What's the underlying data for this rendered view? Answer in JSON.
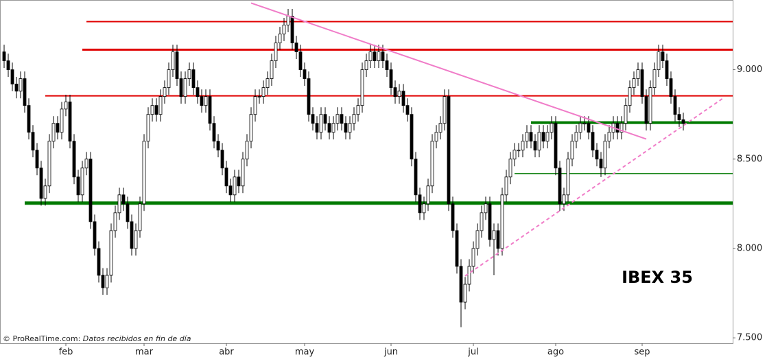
{
  "chart_data": {
    "type": "candlestick",
    "title": "IBEX 35",
    "source": {
      "site": "© ProRealTime.com:",
      "note": "Datos recibidos en fin de día"
    },
    "categories": [
      null,
      null,
      null,
      null,
      null,
      null,
      null,
      null,
      null,
      null,
      null,
      null,
      null,
      null,
      null,
      "feb",
      null,
      null,
      null,
      null,
      null,
      null,
      null,
      null,
      null,
      null,
      null,
      null,
      null,
      null,
      null,
      null,
      null,
      null,
      "mar",
      null,
      null,
      null,
      null,
      null,
      null,
      null,
      null,
      null,
      null,
      null,
      null,
      null,
      null,
      null,
      null,
      null,
      null,
      null,
      "abr",
      null,
      null,
      null,
      null,
      null,
      null,
      null,
      null,
      null,
      null,
      null,
      null,
      null,
      null,
      null,
      null,
      null,
      null,
      "may",
      null,
      null,
      null,
      null,
      null,
      null,
      null,
      null,
      null,
      null,
      null,
      null,
      null,
      null,
      null,
      null,
      null,
      null,
      null,
      null,
      "jun",
      null,
      null,
      null,
      null,
      null,
      null,
      null,
      null,
      null,
      null,
      null,
      null,
      null,
      null,
      null,
      null,
      null,
      null,
      null,
      "jul",
      null,
      null,
      null,
      null,
      null,
      null,
      null,
      null,
      null,
      null,
      null,
      null,
      null,
      null,
      null,
      null,
      null,
      null,
      null,
      "ago",
      null,
      null,
      null,
      null,
      null,
      null,
      null,
      null,
      null,
      null,
      null,
      null,
      null,
      null,
      null,
      null,
      null,
      null,
      null,
      null,
      "sep",
      null,
      null,
      null,
      null,
      null,
      null,
      null,
      null,
      null,
      null
    ],
    "open": [
      9100,
      9050,
      9000,
      8920,
      8880,
      8950,
      8800,
      8650,
      8550,
      8450,
      8280,
      8350,
      8600,
      8700,
      8650,
      8780,
      8820,
      8600,
      8400,
      8300,
      8450,
      8500,
      8150,
      8000,
      7850,
      7780,
      7850,
      8100,
      8200,
      8300,
      8250,
      8150,
      8000,
      8100,
      8250,
      8600,
      8750,
      8800,
      8750,
      8850,
      8900,
      9000,
      9100,
      8950,
      8850,
      8950,
      9000,
      8900,
      8850,
      8800,
      8850,
      8700,
      8600,
      8550,
      8450,
      8350,
      8300,
      8400,
      8350,
      8500,
      8600,
      8750,
      8850,
      8850,
      8900,
      8950,
      9050,
      9150,
      9200,
      9250,
      9300,
      9150,
      9100,
      9000,
      8950,
      8750,
      8700,
      8650,
      8750,
      8700,
      8650,
      8700,
      8750,
      8700,
      8650,
      8700,
      8750,
      8800,
      9000,
      9050,
      9100,
      9050,
      9100,
      9050,
      9000,
      8900,
      8850,
      8880,
      8800,
      8750,
      8500,
      8300,
      8200,
      8250,
      8350,
      8600,
      8650,
      8700,
      8850,
      8250,
      8100,
      7900,
      7700,
      7800,
      7900,
      8000,
      8100,
      8200,
      8250,
      8050,
      8100,
      8000,
      8300,
      8400,
      8500,
      8550,
      8550,
      8600,
      8650,
      8600,
      8550,
      8650,
      8600,
      8650,
      8700,
      8450,
      8250,
      8300,
      8500,
      8600,
      8650,
      8700,
      8700,
      8650,
      8550,
      8500,
      8450,
      8600,
      8650,
      8700,
      8650,
      8700,
      8800,
      8900,
      8950,
      9000,
      8850,
      8700,
      8900,
      9000,
      9100,
      9050,
      8950,
      8850,
      8750,
      8720
    ],
    "high": [
      9140,
      9090,
      9040,
      8960,
      8990,
      8990,
      8840,
      8690,
      8590,
      8490,
      8390,
      8640,
      8740,
      8740,
      8820,
      8860,
      8860,
      8640,
      8440,
      8490,
      8540,
      8540,
      8190,
      8040,
      7890,
      7890,
      8140,
      8240,
      8340,
      8340,
      8290,
      8190,
      8140,
      8290,
      8640,
      8790,
      8840,
      8840,
      8890,
      8940,
      9040,
      9140,
      9140,
      8990,
      8990,
      9040,
      9040,
      8940,
      8890,
      8890,
      8890,
      8740,
      8640,
      8590,
      8490,
      8390,
      8440,
      8440,
      8540,
      8640,
      8790,
      8890,
      8890,
      8940,
      8990,
      9090,
      9190,
      9240,
      9290,
      9340,
      9340,
      9190,
      9140,
      9040,
      8990,
      8790,
      8740,
      8790,
      8790,
      8740,
      8740,
      8790,
      8790,
      8740,
      8740,
      8790,
      8840,
      9040,
      9090,
      9140,
      9140,
      9140,
      9140,
      9090,
      9040,
      8940,
      8920,
      8920,
      8840,
      8790,
      8540,
      8340,
      8290,
      8390,
      8640,
      8690,
      8740,
      8890,
      8890,
      8290,
      8140,
      7940,
      7840,
      7940,
      8040,
      8140,
      8240,
      8290,
      8290,
      8140,
      8140,
      8340,
      8440,
      8540,
      8590,
      8590,
      8640,
      8690,
      8690,
      8640,
      8690,
      8690,
      8690,
      8740,
      8740,
      8490,
      8340,
      8540,
      8640,
      8690,
      8740,
      8740,
      8740,
      8690,
      8590,
      8540,
      8640,
      8690,
      8740,
      8740,
      8740,
      8840,
      8940,
      8990,
      9040,
      9040,
      8890,
      8940,
      9040,
      9140,
      9140,
      9090,
      8990,
      8890,
      8790,
      8760
    ],
    "low": [
      9010,
      8960,
      8880,
      8840,
      8840,
      8760,
      8610,
      8510,
      8410,
      8240,
      8240,
      8310,
      8560,
      8610,
      8610,
      8740,
      8560,
      8360,
      8260,
      8260,
      8410,
      8110,
      7960,
      7810,
      7740,
      7740,
      7810,
      8060,
      8160,
      8210,
      8110,
      7960,
      7960,
      8060,
      8210,
      8560,
      8710,
      8710,
      8710,
      8810,
      8860,
      8960,
      8910,
      8810,
      8810,
      8910,
      8860,
      8810,
      8760,
      8760,
      8660,
      8560,
      8510,
      8410,
      8310,
      8260,
      8260,
      8310,
      8310,
      8460,
      8560,
      8710,
      8810,
      8810,
      8860,
      8910,
      9010,
      9110,
      9160,
      9210,
      9110,
      9060,
      8960,
      8910,
      8710,
      8660,
      8610,
      8610,
      8660,
      8610,
      8610,
      8660,
      8660,
      8610,
      8610,
      8660,
      8710,
      8760,
      8960,
      9010,
      9010,
      9010,
      9010,
      8960,
      8860,
      8810,
      8810,
      8760,
      8710,
      8460,
      8260,
      8160,
      8160,
      8210,
      8310,
      8560,
      8610,
      8660,
      8210,
      8060,
      7860,
      7560,
      7660,
      7760,
      7860,
      7960,
      8060,
      8160,
      8010,
      7850,
      7960,
      7960,
      8260,
      8360,
      8460,
      8510,
      8510,
      8560,
      8560,
      8510,
      8510,
      8560,
      8560,
      8610,
      8410,
      8210,
      8210,
      8260,
      8460,
      8560,
      8610,
      8660,
      8610,
      8510,
      8460,
      8400,
      8410,
      8560,
      8610,
      8610,
      8610,
      8660,
      8760,
      8860,
      8910,
      8810,
      8660,
      8660,
      8860,
      8960,
      9010,
      8910,
      8810,
      8710,
      8680,
      8660
    ],
    "close": [
      9050,
      9000,
      8920,
      8880,
      8950,
      8800,
      8650,
      8550,
      8450,
      8280,
      8350,
      8600,
      8700,
      8650,
      8780,
      8820,
      8600,
      8400,
      8300,
      8450,
      8500,
      8150,
      8000,
      7850,
      7780,
      7850,
      8100,
      8200,
      8300,
      8250,
      8150,
      8000,
      8100,
      8250,
      8600,
      8750,
      8800,
      8750,
      8850,
      8900,
      9000,
      9100,
      8950,
      8850,
      8950,
      9000,
      8900,
      8850,
      8800,
      8850,
      8700,
      8600,
      8550,
      8450,
      8350,
      8300,
      8400,
      8350,
      8500,
      8600,
      8750,
      8850,
      8850,
      8900,
      8950,
      9050,
      9150,
      9200,
      9250,
      9300,
      9150,
      9100,
      9000,
      8950,
      8750,
      8700,
      8650,
      8750,
      8700,
      8650,
      8700,
      8750,
      8700,
      8650,
      8700,
      8750,
      8800,
      9000,
      9050,
      9100,
      9050,
      9100,
      9050,
      9000,
      8900,
      8850,
      8880,
      8800,
      8750,
      8500,
      8300,
      8200,
      8250,
      8350,
      8600,
      8650,
      8700,
      8850,
      8250,
      8100,
      7900,
      7700,
      7800,
      7900,
      8000,
      8100,
      8200,
      8250,
      8050,
      8100,
      8000,
      8300,
      8400,
      8500,
      8550,
      8550,
      8600,
      8650,
      8600,
      8550,
      8650,
      8600,
      8650,
      8700,
      8450,
      8250,
      8300,
      8500,
      8600,
      8650,
      8700,
      8700,
      8650,
      8550,
      8500,
      8450,
      8600,
      8650,
      8700,
      8650,
      8700,
      8800,
      8900,
      8950,
      9000,
      8850,
      8700,
      8900,
      9000,
      9100,
      9050,
      8950,
      8850,
      8750,
      8720,
      8700
    ],
    "up_color": "#ffffff",
    "down_color": "#000000",
    "hlines": [
      {
        "value": 9269,
        "from": 20,
        "color": "#e00000",
        "width": 2
      },
      {
        "value": 9112,
        "from": 19,
        "color": "#e00000",
        "width": 3
      },
      {
        "value": 8854,
        "from": 10,
        "color": "#e00000",
        "width": 2
      },
      {
        "value": 8704,
        "from": 128,
        "color": "#007a00",
        "width": 4
      },
      {
        "value": 8419,
        "from": 124,
        "color": "#007a00",
        "width": 1.5
      },
      {
        "value": 8254,
        "from": 5,
        "color": "#007a00",
        "width": 5
      }
    ],
    "trendlines": [
      {
        "points": [
          [
            60,
            9373
          ],
          [
            156,
            8612
          ]
        ],
        "color": "#f07cc8",
        "dashed": false
      },
      {
        "points": [
          [
            112,
            7846
          ],
          [
            175,
            8846
          ]
        ],
        "color": "#f07cc8",
        "dashed": true
      }
    ],
    "ylim": [
      7470,
      9390
    ],
    "yticks": [
      {
        "value": 7500,
        "label": "7.500"
      },
      {
        "value": 8000,
        "label": "8.000"
      },
      {
        "value": 8500,
        "label": "8.500"
      },
      {
        "value": 9000,
        "label": "9.000"
      }
    ]
  }
}
